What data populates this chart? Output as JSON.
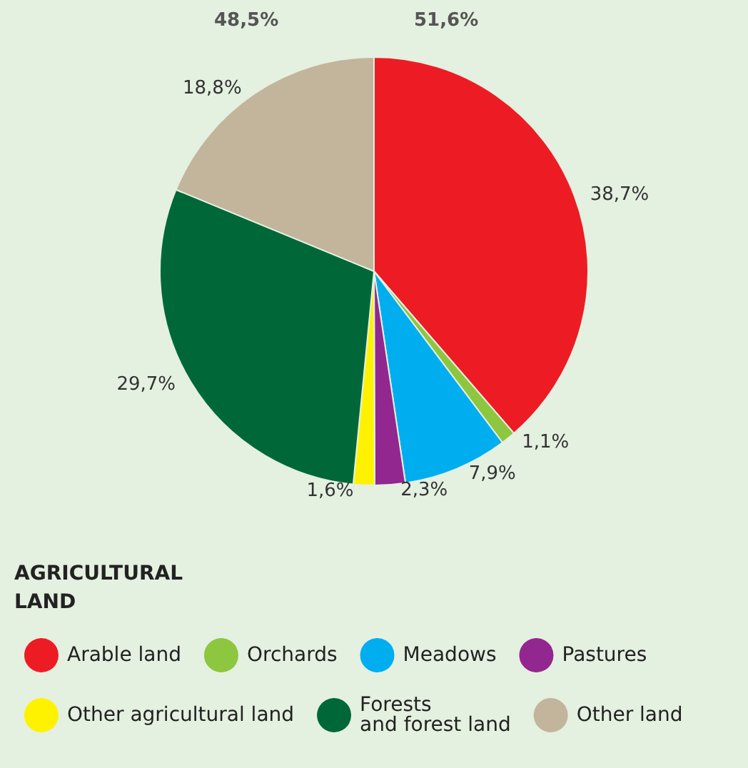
{
  "chart_data": {
    "type": "pie",
    "legend_title": "AGRICULTURAL LAND",
    "categories": [
      "Arable land",
      "Orchards",
      "Meadows",
      "Pastures",
      "Other agricultural land",
      "Forests\nand forest land",
      "Other land"
    ],
    "values": [
      38.7,
      1.1,
      7.9,
      2.3,
      1.6,
      29.7,
      18.8
    ],
    "colors": [
      "#ed1c24",
      "#8dc63f",
      "#00aeef",
      "#92278f",
      "#fff200",
      "#006838",
      "#c2b59b"
    ],
    "value_labels": [
      "38,7%",
      "1,1%",
      "7,9%",
      "2,3%",
      "1,6%",
      "29,7%",
      "18,8%"
    ],
    "annotations": [
      "48,5%",
      "51,6%"
    ],
    "legend": "bottom"
  }
}
